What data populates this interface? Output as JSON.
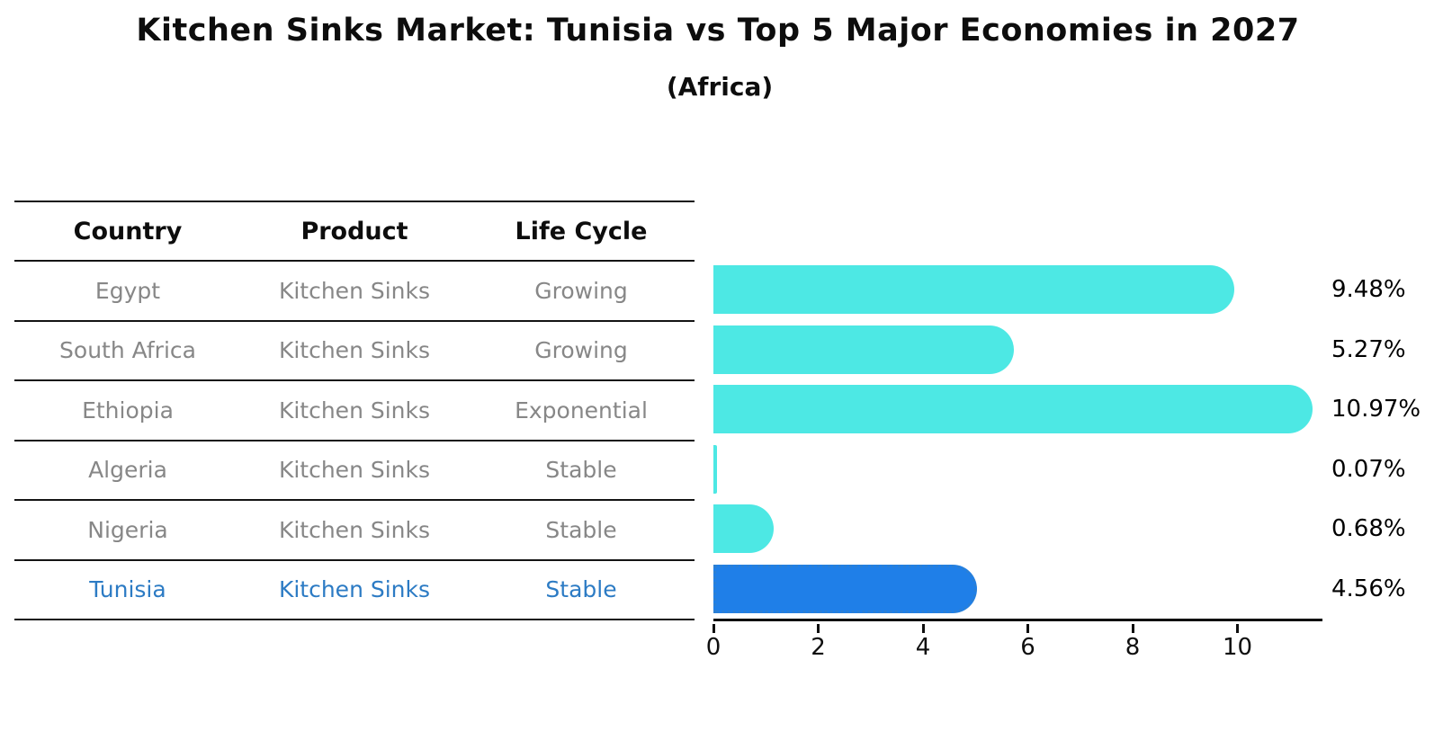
{
  "title": "Kitchen Sinks Market: Tunisia vs Top 5 Major Economies in 2027",
  "subtitle": "(Africa)",
  "table": {
    "headers": [
      "Country",
      "Product",
      "Life Cycle"
    ],
    "rows": [
      {
        "country": "Egypt",
        "product": "Kitchen Sinks",
        "life_cycle": "Growing",
        "highlight": false
      },
      {
        "country": "South Africa",
        "product": "Kitchen Sinks",
        "life_cycle": "Growing",
        "highlight": false
      },
      {
        "country": "Ethiopia",
        "product": "Kitchen Sinks",
        "life_cycle": "Exponential",
        "highlight": false
      },
      {
        "country": "Algeria",
        "product": "Kitchen Sinks",
        "life_cycle": "Stable",
        "highlight": false
      },
      {
        "country": "Nigeria",
        "product": "Kitchen Sinks",
        "life_cycle": "Stable",
        "highlight": false
      },
      {
        "country": "Tunisia",
        "product": "Kitchen Sinks",
        "life_cycle": "Stable",
        "highlight": true
      }
    ]
  },
  "chart_data": {
    "type": "bar",
    "orientation": "horizontal",
    "title": "Kitchen Sinks Market: Tunisia vs Top 5 Major Economies in 2027",
    "subtitle": "(Africa)",
    "categories": [
      "Egypt",
      "South Africa",
      "Ethiopia",
      "Algeria",
      "Nigeria",
      "Tunisia"
    ],
    "values": [
      9.48,
      5.27,
      10.97,
      0.07,
      0.68,
      4.56
    ],
    "value_labels": [
      "9.48%",
      "5.27%",
      "10.97%",
      "0.07%",
      "0.68%",
      "4.56%"
    ],
    "highlight_category": "Tunisia",
    "highlight_index": 5,
    "xlabel": "",
    "ylabel": "",
    "xlim": [
      0,
      11.6
    ],
    "x_ticks": [
      0,
      2,
      4,
      6,
      8,
      10
    ],
    "grid": false,
    "legend": false
  },
  "colors": {
    "bar": "#4de8e4",
    "highlight_bar": "#1f7fe8",
    "highlight_border": "#2b7fd4",
    "highlight_text": "#2c7bc4",
    "row_text": "#878787",
    "header_text": "#0d0d0d",
    "axis": "#0f0f0f"
  }
}
